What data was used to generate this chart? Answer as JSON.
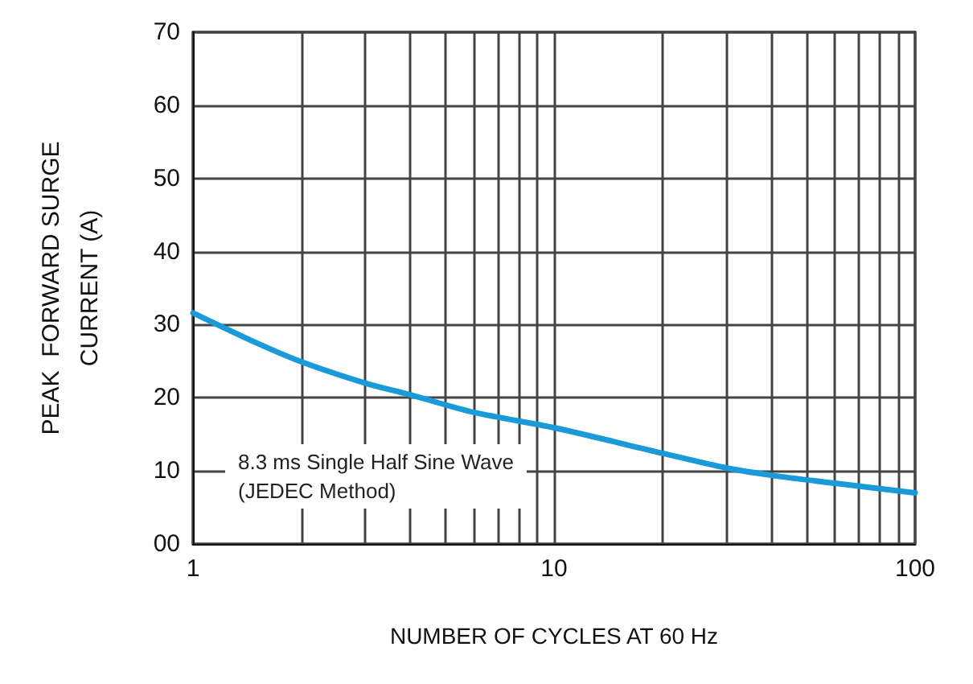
{
  "chart_data": {
    "type": "line",
    "xlabel": "NUMBER OF CYCLES AT 60 Hz",
    "ylabel": "PEAK  FORWARD SURGE\nCURRENT (A)",
    "log": "x",
    "grid": true,
    "marker": "none",
    "line_style": "solid",
    "xlim": [
      1,
      100
    ],
    "xticks": [
      1,
      {
        "value": 2,
        "label": null
      },
      {
        "value": 3,
        "label": null
      },
      {
        "value": 4,
        "label": null
      },
      {
        "value": 5,
        "label": null
      },
      {
        "value": 6,
        "label": null
      },
      {
        "value": 7,
        "label": null
      },
      {
        "value": 8,
        "label": null
      },
      {
        "value": 9,
        "label": null
      },
      10,
      {
        "value": 20,
        "label": null
      },
      {
        "value": 30,
        "label": null
      },
      {
        "value": 40,
        "label": null
      },
      {
        "value": 50,
        "label": null
      },
      {
        "value": 60,
        "label": null
      },
      {
        "value": 70,
        "label": null
      },
      {
        "value": 80,
        "label": null
      },
      {
        "value": 90,
        "label": null
      },
      100
    ],
    "ylim": [
      0,
      70
    ],
    "yticks": [
      {
        "value": 0,
        "label": "00"
      },
      10,
      20,
      30,
      40,
      50,
      60,
      70
    ],
    "x": [
      1,
      1.5,
      2,
      3,
      4,
      6,
      10,
      20,
      30,
      40,
      60,
      100
    ],
    "series": [
      {
        "color": "#1a9ad9",
        "values": [
          31.6,
          27.5,
          24.9,
          22,
          20.4,
          18,
          15.9,
          12.4,
          10.4,
          9.4,
          8.3,
          7.0
        ]
      }
    ],
    "annotations": [
      "8.3 ms Single Half Sine Wave\n(JEDEC Method)"
    ]
  }
}
